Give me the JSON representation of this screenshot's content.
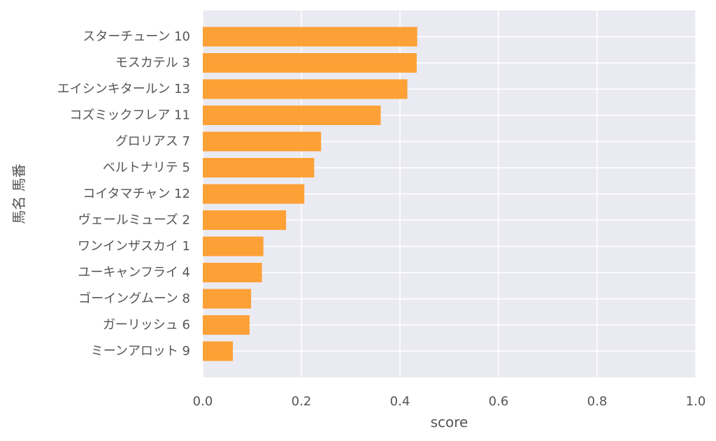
{
  "chart_data": {
    "type": "bar",
    "orientation": "horizontal",
    "categories": [
      "スターチューン 10",
      "モスカテル 3",
      "エイシンキタールン 13",
      "コズミックフレア 11",
      "グロリアス 7",
      "ベルトナリテ 5",
      "コイタマチャン 12",
      "ヴェールミューズ 2",
      "ワンインザスカイ 1",
      "ユーキャンフライ 4",
      "ゴーイングムーン 8",
      "ガーリッシュ 6",
      "ミーンアロット 9"
    ],
    "values": [
      0.435,
      0.434,
      0.415,
      0.361,
      0.24,
      0.226,
      0.206,
      0.169,
      0.123,
      0.12,
      0.098,
      0.095,
      0.061
    ],
    "xlabel": "score",
    "ylabel": "馬名 馬番",
    "xlim": [
      0,
      1.0
    ],
    "xticks": [
      "0.0",
      "0.2",
      "0.4",
      "0.6",
      "0.8",
      "1.0"
    ],
    "grid": true,
    "colors": {
      "bar": "#ff9922",
      "background": "#eaeaf2",
      "grid": "#ffffff",
      "text": "#555555"
    }
  }
}
